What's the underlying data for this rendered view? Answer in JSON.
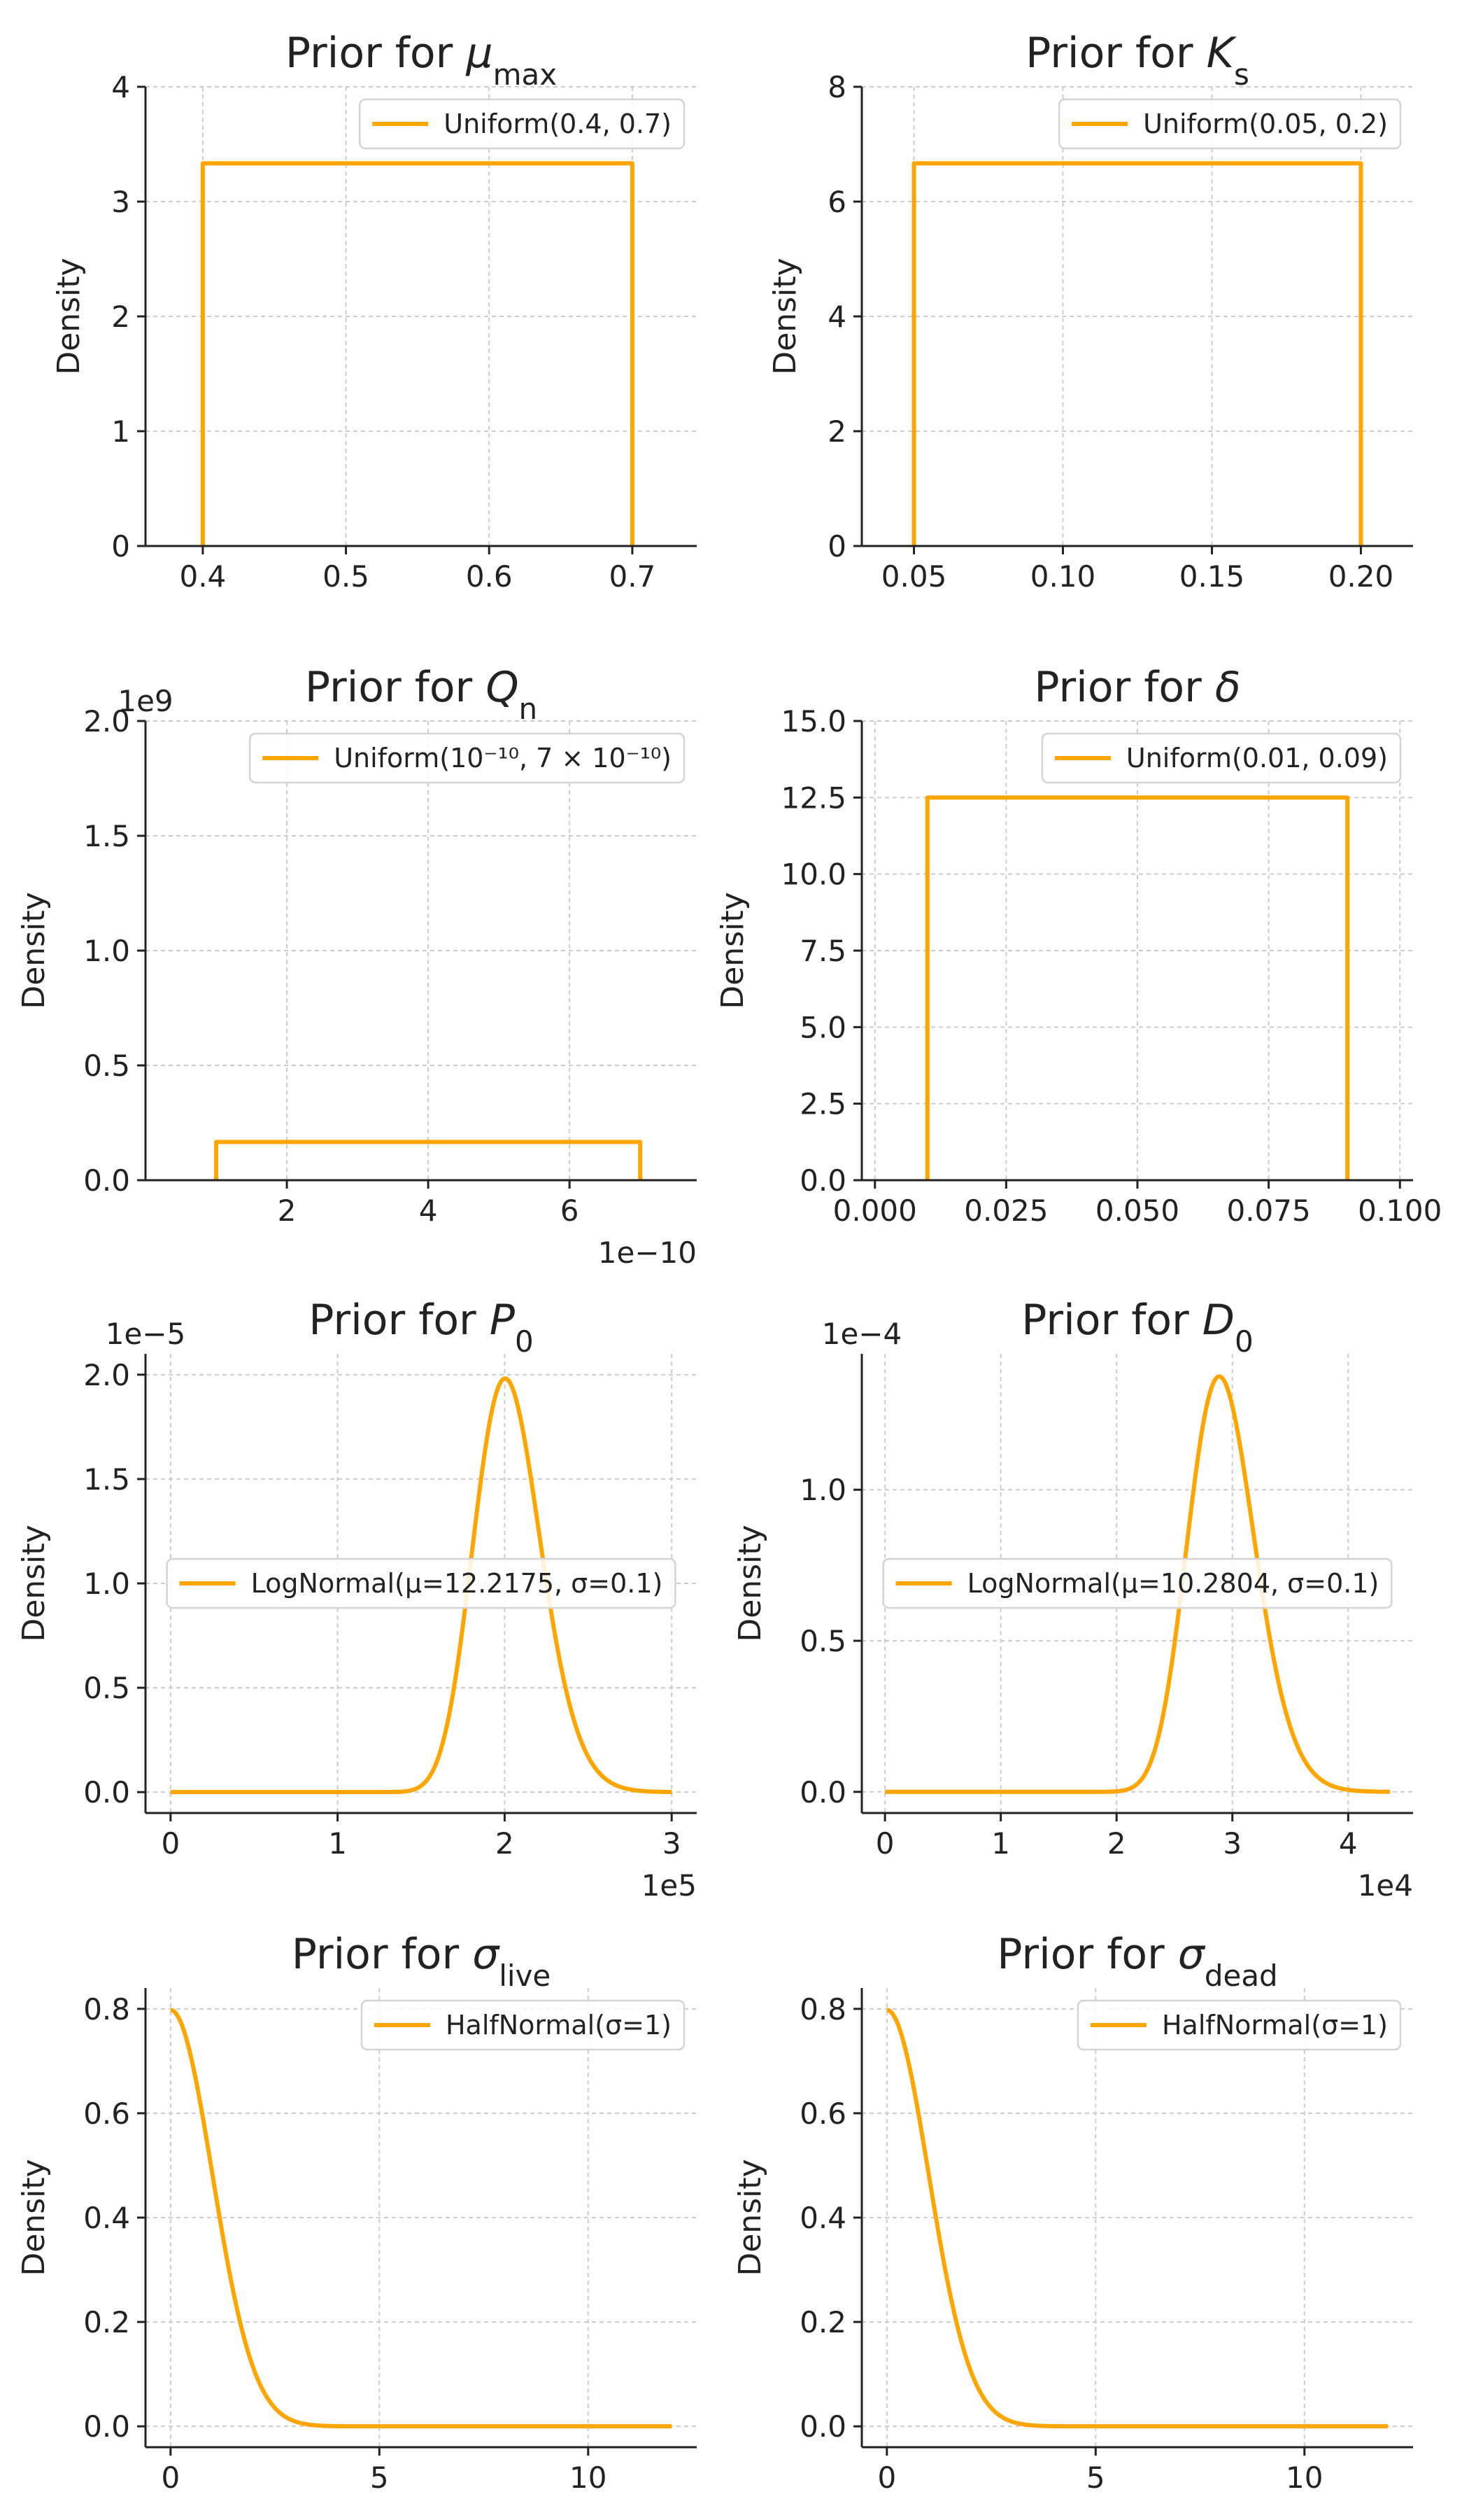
{
  "figure": {
    "line_color": "#FFA500",
    "grid_color": "#CCCCCC",
    "text_color": "#222222"
  },
  "chart_data": [
    {
      "type": "line",
      "title": "Prior for μ",
      "title_sub": "max",
      "title_italic_symbol": true,
      "xlabel": "",
      "ylabel": "Density",
      "xlim": [
        0.36,
        0.745
      ],
      "ylim": [
        0,
        4
      ],
      "xticks": [
        0.4,
        0.5,
        0.6,
        0.7
      ],
      "xtick_labels": [
        "0.4",
        "0.5",
        "0.6",
        "0.7"
      ],
      "yticks": [
        0,
        1,
        2,
        3,
        4
      ],
      "ytick_labels": [
        "0",
        "1",
        "2",
        "3",
        "4"
      ],
      "y_offset_label": "",
      "x_offset_label": "",
      "legend_position": "top-right",
      "series": [
        {
          "name": "Uniform(0.4, 0.7)",
          "distribution": "uniform",
          "low": 0.4,
          "high": 0.7
        }
      ]
    },
    {
      "type": "line",
      "title": "Prior for K",
      "title_sub": "s",
      "title_italic_symbol": true,
      "xlabel": "",
      "ylabel": "Density",
      "xlim": [
        0.0325,
        0.2175
      ],
      "ylim": [
        0,
        8
      ],
      "xticks": [
        0.05,
        0.1,
        0.15,
        0.2
      ],
      "xtick_labels": [
        "0.05",
        "0.10",
        "0.15",
        "0.20"
      ],
      "yticks": [
        0,
        2,
        4,
        6,
        8
      ],
      "ytick_labels": [
        "0",
        "2",
        "4",
        "6",
        "8"
      ],
      "y_offset_label": "",
      "x_offset_label": "",
      "legend_position": "top-right",
      "series": [
        {
          "name": "Uniform(0.05, 0.2)",
          "distribution": "uniform",
          "low": 0.05,
          "high": 0.2
        }
      ]
    },
    {
      "type": "line",
      "title": "Prior for Q",
      "title_sub": "n",
      "title_italic_symbol": true,
      "xlabel": "",
      "ylabel": "Density",
      "xlim": [
        0.0,
        7.8
      ],
      "ylim": [
        0,
        2.0
      ],
      "xticks": [
        2,
        4,
        6
      ],
      "xtick_labels": [
        "2",
        "4",
        "6"
      ],
      "yticks": [
        0,
        0.5,
        1.0,
        1.5,
        2.0
      ],
      "ytick_labels": [
        "0.0",
        "0.5",
        "1.0",
        "1.5",
        "2.0"
      ],
      "y_offset_label": "1e9",
      "x_offset_label": "1e−10",
      "legend_position": "top-right",
      "series": [
        {
          "name": "Uniform(10⁻¹⁰, 7 × 10⁻¹⁰)",
          "distribution": "uniform",
          "low": 1.0,
          "high": 7.0
        }
      ]
    },
    {
      "type": "line",
      "title": "Prior for δ",
      "title_sub": "",
      "title_italic_symbol": true,
      "xlabel": "",
      "ylabel": "Density",
      "xlim": [
        -0.0025,
        0.1025
      ],
      "ylim": [
        0,
        15
      ],
      "xticks": [
        0.0,
        0.025,
        0.05,
        0.075,
        0.1
      ],
      "xtick_labels": [
        "0.000",
        "0.025",
        "0.050",
        "0.075",
        "0.100"
      ],
      "yticks": [
        0,
        2.5,
        5,
        7.5,
        10,
        12.5,
        15
      ],
      "ytick_labels": [
        "0.0",
        "2.5",
        "5.0",
        "7.5",
        "10.0",
        "12.5",
        "15.0"
      ],
      "y_offset_label": "",
      "x_offset_label": "",
      "legend_position": "top-right",
      "series": [
        {
          "name": "Uniform(0.01, 0.09)",
          "distribution": "uniform",
          "low": 0.01,
          "high": 0.09
        }
      ]
    },
    {
      "type": "line",
      "title": "Prior for P",
      "title_sub": "0",
      "title_italic_symbol": true,
      "xlabel": "",
      "ylabel": "Density",
      "xlim": [
        -0.15,
        3.15
      ],
      "ylim": [
        -0.1,
        2.1
      ],
      "xticks": [
        0,
        1,
        2,
        3
      ],
      "xtick_labels": [
        "0",
        "1",
        "2",
        "3"
      ],
      "yticks": [
        0.0,
        0.5,
        1.0,
        1.5,
        2.0
      ],
      "ytick_labels": [
        "0.0",
        "0.5",
        "1.0",
        "1.5",
        "2.0"
      ],
      "y_offset_label": "1e−5",
      "x_offset_label": "1e5",
      "legend_position": "center",
      "series": [
        {
          "name": "LogNormal(μ=12.2175, σ=0.1)",
          "distribution": "lognormal",
          "mu": 12.2175,
          "sigma": 0.1,
          "x_scale": 100000,
          "y_scale": 1e-05,
          "x_range": [
            0,
            3
          ]
        }
      ]
    },
    {
      "type": "line",
      "title": "Prior for D",
      "title_sub": "0",
      "title_italic_symbol": true,
      "xlabel": "",
      "ylabel": "Density",
      "xlim": [
        -0.2,
        4.56
      ],
      "ylim": [
        -0.07,
        1.45
      ],
      "xticks": [
        0,
        1,
        2,
        3,
        4
      ],
      "xtick_labels": [
        "0",
        "1",
        "2",
        "3",
        "4"
      ],
      "yticks": [
        0.0,
        0.5,
        1.0
      ],
      "ytick_labels": [
        "0.0",
        "0.5",
        "1.0"
      ],
      "y_offset_label": "1e−4",
      "x_offset_label": "1e4",
      "legend_position": "center",
      "series": [
        {
          "name": "LogNormal(μ=10.2804, σ=0.1)",
          "distribution": "lognormal",
          "mu": 10.2804,
          "sigma": 0.1,
          "x_scale": 10000,
          "y_scale": 0.0001,
          "x_range": [
            0,
            4.36
          ]
        }
      ]
    },
    {
      "type": "line",
      "title": "Prior for σ",
      "title_sub": "live",
      "title_italic_symbol": true,
      "xlabel": "",
      "ylabel": "Density",
      "xlim": [
        -0.6,
        12.6
      ],
      "ylim": [
        -0.04,
        0.84
      ],
      "xticks": [
        0,
        5,
        10
      ],
      "xtick_labels": [
        "0",
        "5",
        "10"
      ],
      "yticks": [
        0.0,
        0.2,
        0.4,
        0.6,
        0.8
      ],
      "ytick_labels": [
        "0.0",
        "0.2",
        "0.4",
        "0.6",
        "0.8"
      ],
      "y_offset_label": "",
      "x_offset_label": "",
      "legend_position": "top-right",
      "series": [
        {
          "name": "HalfNormal(σ=1)",
          "distribution": "halfnormal",
          "sigma": 1,
          "x_range": [
            0,
            12
          ]
        }
      ]
    },
    {
      "type": "line",
      "title": "Prior for σ",
      "title_sub": "dead",
      "title_italic_symbol": true,
      "xlabel": "",
      "ylabel": "Density",
      "xlim": [
        -0.6,
        12.6
      ],
      "ylim": [
        -0.04,
        0.84
      ],
      "xticks": [
        0,
        5,
        10
      ],
      "xtick_labels": [
        "0",
        "5",
        "10"
      ],
      "yticks": [
        0.0,
        0.2,
        0.4,
        0.6,
        0.8
      ],
      "ytick_labels": [
        "0.0",
        "0.2",
        "0.4",
        "0.6",
        "0.8"
      ],
      "y_offset_label": "",
      "x_offset_label": "",
      "legend_position": "top-right",
      "series": [
        {
          "name": "HalfNormal(σ=1)",
          "distribution": "halfnormal",
          "sigma": 1,
          "x_range": [
            0,
            12
          ]
        }
      ]
    }
  ]
}
